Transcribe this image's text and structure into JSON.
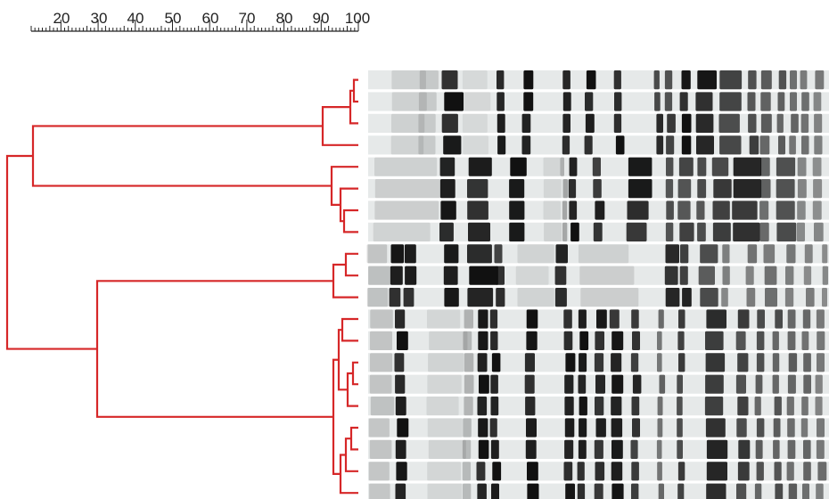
{
  "scale": {
    "tick_labels": [
      "20",
      "30",
      "40",
      "50",
      "60",
      "70",
      "80",
      "90",
      "100"
    ],
    "min": 20,
    "max": 100
  },
  "colors": {
    "dendrogram": "#d62728",
    "band_dark": "#111111",
    "lane_bg": "#e6e9e9"
  },
  "profiles": {
    "lane_count": 20,
    "clusters": [
      {
        "lanes": [
          0,
          1,
          2,
          3
        ]
      },
      {
        "lanes": [
          4,
          5,
          6,
          7
        ]
      },
      {
        "lanes": [
          8,
          9,
          10
        ]
      },
      {
        "lanes": [
          11,
          12,
          13,
          14,
          15,
          16,
          17,
          18,
          19
        ]
      }
    ]
  }
}
